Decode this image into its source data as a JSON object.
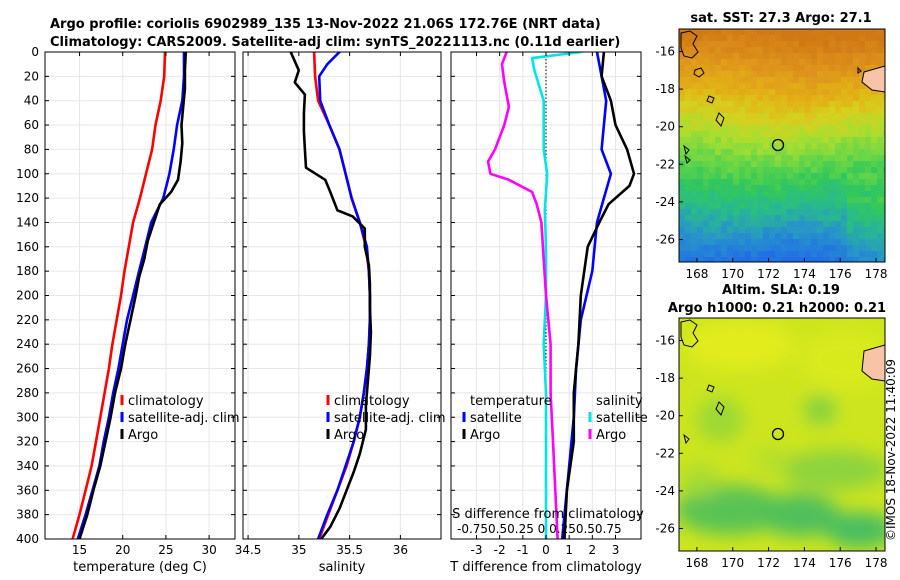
{
  "title": {
    "line1": "Argo profile: coriolis 6902989_135 13-Nov-2022 21.06S 172.76E (NRT data)",
    "line2": "Climatology: CARS2009. Satellite-adj clim: synTS_20221113.nc (0.11d earlier)"
  },
  "colors": {
    "climatology": "#ff0000",
    "satellite": "#0000ff",
    "argo": "#000000",
    "sat_salinity": "#00e6e6",
    "argo_salinity": "#ff00ff"
  },
  "chart_data": [
    {
      "type": "line",
      "id": "temperature",
      "xlabel": "temperature (deg C)",
      "ylabel": "",
      "xlim": [
        11,
        33
      ],
      "xticks": [
        15,
        20,
        25,
        30
      ],
      "ylim": [
        0,
        400
      ],
      "yticks": [
        0,
        20,
        40,
        60,
        80,
        100,
        120,
        140,
        160,
        180,
        200,
        220,
        240,
        260,
        280,
        300,
        320,
        340,
        360,
        380,
        400
      ],
      "legend": [
        "climatology",
        "satellite-adj. clim",
        "Argo"
      ],
      "legend_position": "lower-right",
      "series": [
        {
          "name": "climatology",
          "color": "#ff0000",
          "points": [
            [
              24.9,
              0
            ],
            [
              24.8,
              20
            ],
            [
              24.4,
              40
            ],
            [
              23.8,
              60
            ],
            [
              23.4,
              80
            ],
            [
              22.7,
              100
            ],
            [
              22.0,
              120
            ],
            [
              21.2,
              140
            ],
            [
              20.7,
              160
            ],
            [
              20.2,
              180
            ],
            [
              19.8,
              200
            ],
            [
              19.3,
              220
            ],
            [
              18.8,
              240
            ],
            [
              18.4,
              260
            ],
            [
              17.9,
              280
            ],
            [
              17.4,
              300
            ],
            [
              16.9,
              320
            ],
            [
              16.4,
              340
            ],
            [
              15.7,
              360
            ],
            [
              15.0,
              380
            ],
            [
              14.2,
              400
            ]
          ]
        },
        {
          "name": "satellite-adj. clim",
          "color": "#0000ff",
          "points": [
            [
              27.1,
              0
            ],
            [
              27.1,
              20
            ],
            [
              26.9,
              40
            ],
            [
              26.3,
              60
            ],
            [
              25.9,
              80
            ],
            [
              25.4,
              100
            ],
            [
              24.7,
              120
            ],
            [
              23.3,
              140
            ],
            [
              22.6,
              160
            ],
            [
              21.9,
              180
            ],
            [
              21.2,
              200
            ],
            [
              20.5,
              220
            ],
            [
              20.0,
              240
            ],
            [
              19.5,
              260
            ],
            [
              18.9,
              280
            ],
            [
              18.4,
              300
            ],
            [
              17.8,
              320
            ],
            [
              17.3,
              340
            ],
            [
              16.5,
              360
            ],
            [
              15.7,
              380
            ],
            [
              14.8,
              400
            ]
          ]
        },
        {
          "name": "Argo",
          "color": "#000000",
          "points": [
            [
              27.3,
              0
            ],
            [
              27.2,
              15
            ],
            [
              27.2,
              30
            ],
            [
              27.0,
              45
            ],
            [
              26.8,
              60
            ],
            [
              26.9,
              75
            ],
            [
              26.7,
              90
            ],
            [
              26.4,
              105
            ],
            [
              25.6,
              115
            ],
            [
              24.3,
              125
            ],
            [
              23.6,
              140
            ],
            [
              22.9,
              155
            ],
            [
              22.5,
              170
            ],
            [
              21.9,
              185
            ],
            [
              21.5,
              200
            ],
            [
              20.9,
              220
            ],
            [
              20.3,
              240
            ],
            [
              19.8,
              260
            ],
            [
              19.1,
              280
            ],
            [
              18.6,
              300
            ],
            [
              18.0,
              320
            ],
            [
              17.4,
              340
            ],
            [
              16.6,
              360
            ],
            [
              15.9,
              380
            ],
            [
              15.0,
              400
            ]
          ]
        }
      ]
    },
    {
      "type": "line",
      "id": "salinity",
      "xlabel": "salinity",
      "ylabel": "",
      "xlim": [
        34.45,
        36.4
      ],
      "xticks": [
        34.5,
        35,
        35.5,
        36
      ],
      "ylim": [
        0,
        400
      ],
      "legend": [
        "climatology",
        "satellite-adj. clim",
        "Argo"
      ],
      "legend_position": "lower-right",
      "series": [
        {
          "name": "climatology",
          "color": "#ff0000",
          "points": [
            [
              35.15,
              0
            ],
            [
              35.16,
              20
            ],
            [
              35.19,
              40
            ],
            [
              35.3,
              60
            ],
            [
              35.4,
              80
            ],
            [
              35.46,
              100
            ],
            [
              35.52,
              120
            ],
            [
              35.6,
              140
            ],
            [
              35.66,
              160
            ],
            [
              35.69,
              180
            ],
            [
              35.7,
              200
            ],
            [
              35.7,
              220
            ],
            [
              35.69,
              240
            ],
            [
              35.67,
              260
            ],
            [
              35.64,
              280
            ],
            [
              35.6,
              300
            ],
            [
              35.54,
              320
            ],
            [
              35.47,
              340
            ],
            [
              35.38,
              360
            ],
            [
              35.29,
              380
            ],
            [
              35.2,
              400
            ]
          ]
        },
        {
          "name": "satellite-adj. clim",
          "color": "#0000ff",
          "points": [
            [
              35.4,
              0
            ],
            [
              35.28,
              10
            ],
            [
              35.2,
              20
            ],
            [
              35.21,
              40
            ],
            [
              35.3,
              60
            ],
            [
              35.4,
              80
            ],
            [
              35.46,
              100
            ],
            [
              35.52,
              120
            ],
            [
              35.6,
              140
            ],
            [
              35.67,
              160
            ],
            [
              35.69,
              180
            ],
            [
              35.7,
              200
            ],
            [
              35.7,
              220
            ],
            [
              35.69,
              240
            ],
            [
              35.67,
              260
            ],
            [
              35.64,
              280
            ],
            [
              35.6,
              300
            ],
            [
              35.54,
              320
            ],
            [
              35.46,
              340
            ],
            [
              35.38,
              360
            ],
            [
              35.28,
              380
            ],
            [
              35.19,
              400
            ]
          ]
        },
        {
          "name": "Argo",
          "color": "#000000",
          "points": [
            [
              34.92,
              0
            ],
            [
              35.0,
              15
            ],
            [
              34.96,
              25
            ],
            [
              35.06,
              35
            ],
            [
              35.05,
              50
            ],
            [
              35.05,
              65
            ],
            [
              35.06,
              80
            ],
            [
              35.07,
              95
            ],
            [
              35.26,
              105
            ],
            [
              35.31,
              115
            ],
            [
              35.38,
              130
            ],
            [
              35.53,
              135
            ],
            [
              35.65,
              145
            ],
            [
              35.65,
              160
            ],
            [
              35.69,
              175
            ],
            [
              35.7,
              190
            ],
            [
              35.7,
              210
            ],
            [
              35.71,
              230
            ],
            [
              35.7,
              250
            ],
            [
              35.68,
              270
            ],
            [
              35.66,
              290
            ],
            [
              35.66,
              310
            ],
            [
              35.6,
              330
            ],
            [
              35.54,
              345
            ],
            [
              35.47,
              360
            ],
            [
              35.4,
              375
            ],
            [
              35.31,
              390
            ],
            [
              35.22,
              400
            ]
          ]
        }
      ]
    },
    {
      "type": "line",
      "id": "differences",
      "xlabel": "T difference from climatology",
      "xlabel_top": "S difference from climatology",
      "xlim": [
        -4.1,
        4.1
      ],
      "xticks": [
        -3,
        -2,
        -1,
        0,
        1,
        2,
        3
      ],
      "xticks_top": [
        -0.75,
        -0.5,
        -0.25,
        0,
        0.25,
        0.5,
        0.75
      ],
      "xtick_labels_top": "-0.750.50.25 0 0.250.50.75",
      "ylim": [
        0,
        400
      ],
      "legend_temperature_header": "temperature",
      "legend_salinity_header": "salinity",
      "legend": [
        "satellite",
        "Argo",
        "satellite",
        "Argo"
      ],
      "series": [
        {
          "name": "satellite (salinity)",
          "color": "#00e6e6",
          "points": [
            [
              1.5,
              0
            ],
            [
              -0.6,
              5
            ],
            [
              -0.5,
              15
            ],
            [
              -0.1,
              40
            ],
            [
              -0.1,
              80
            ],
            [
              0.05,
              100
            ],
            [
              -0.05,
              130
            ],
            [
              0.0,
              160
            ],
            [
              0.0,
              200
            ],
            [
              -0.1,
              240
            ],
            [
              0.0,
              280
            ],
            [
              0.0,
              320
            ],
            [
              0.0,
              360
            ],
            [
              0.0,
              400
            ]
          ]
        },
        {
          "name": "Argo (salinity)",
          "color": "#ff00ff",
          "points": [
            [
              -1.7,
              0
            ],
            [
              -1.9,
              10
            ],
            [
              -1.8,
              25
            ],
            [
              -1.6,
              45
            ],
            [
              -1.8,
              60
            ],
            [
              -2.2,
              80
            ],
            [
              -2.5,
              90
            ],
            [
              -2.4,
              100
            ],
            [
              -1.6,
              105
            ],
            [
              -0.6,
              115
            ],
            [
              -0.4,
              125
            ],
            [
              -0.2,
              140
            ],
            [
              -0.1,
              170
            ],
            [
              0.0,
              200
            ],
            [
              0.2,
              240
            ],
            [
              0.2,
              280
            ],
            [
              0.3,
              320
            ],
            [
              0.4,
              360
            ],
            [
              0.5,
              400
            ]
          ]
        },
        {
          "name": "satellite (temperature)",
          "color": "#0000ff",
          "points": [
            [
              2.2,
              0
            ],
            [
              2.4,
              20
            ],
            [
              2.6,
              40
            ],
            [
              2.5,
              60
            ],
            [
              2.4,
              80
            ],
            [
              2.8,
              100
            ],
            [
              2.5,
              120
            ],
            [
              2.2,
              140
            ],
            [
              2.0,
              180
            ],
            [
              1.5,
              220
            ],
            [
              1.3,
              260
            ],
            [
              1.2,
              300
            ],
            [
              1.0,
              340
            ],
            [
              0.8,
              380
            ],
            [
              0.7,
              400
            ]
          ]
        },
        {
          "name": "Argo (temperature)",
          "color": "#000000",
          "points": [
            [
              2.5,
              0
            ],
            [
              2.4,
              20
            ],
            [
              2.8,
              40
            ],
            [
              3.0,
              60
            ],
            [
              3.5,
              80
            ],
            [
              3.8,
              100
            ],
            [
              3.6,
              110
            ],
            [
              2.7,
              125
            ],
            [
              2.3,
              140
            ],
            [
              1.8,
              160
            ],
            [
              1.5,
              200
            ],
            [
              1.4,
              240
            ],
            [
              1.2,
              280
            ],
            [
              1.2,
              320
            ],
            [
              0.9,
              360
            ],
            [
              0.8,
              400
            ]
          ]
        }
      ]
    },
    {
      "type": "heatmap",
      "id": "sst_map",
      "title": "sat. SST: 27.3 Argo: 27.1",
      "xticks": [
        168,
        170,
        172,
        174,
        176,
        178
      ],
      "yticks": [
        -16,
        -18,
        -20,
        -22,
        -24,
        -26
      ],
      "xlim": [
        167,
        178.5
      ],
      "ylim": [
        -27.2,
        -14.8
      ],
      "argo_position": [
        172.76,
        -21.06
      ]
    },
    {
      "type": "heatmap",
      "id": "sla_map",
      "title": "Altim. SLA: 0.19",
      "subtitle": "Argo h1000: 0.21 h2000: 0.21",
      "xticks": [
        168,
        170,
        172,
        174,
        176,
        178
      ],
      "yticks": [
        -16,
        -18,
        -20,
        -22,
        -24,
        -26
      ],
      "xlim": [
        167,
        178.5
      ],
      "ylim": [
        -27.2,
        -14.8
      ],
      "argo_position": [
        172.76,
        -21.06
      ]
    }
  ],
  "watermark": "©IMOS 18-Nov-2022 11:40:09"
}
